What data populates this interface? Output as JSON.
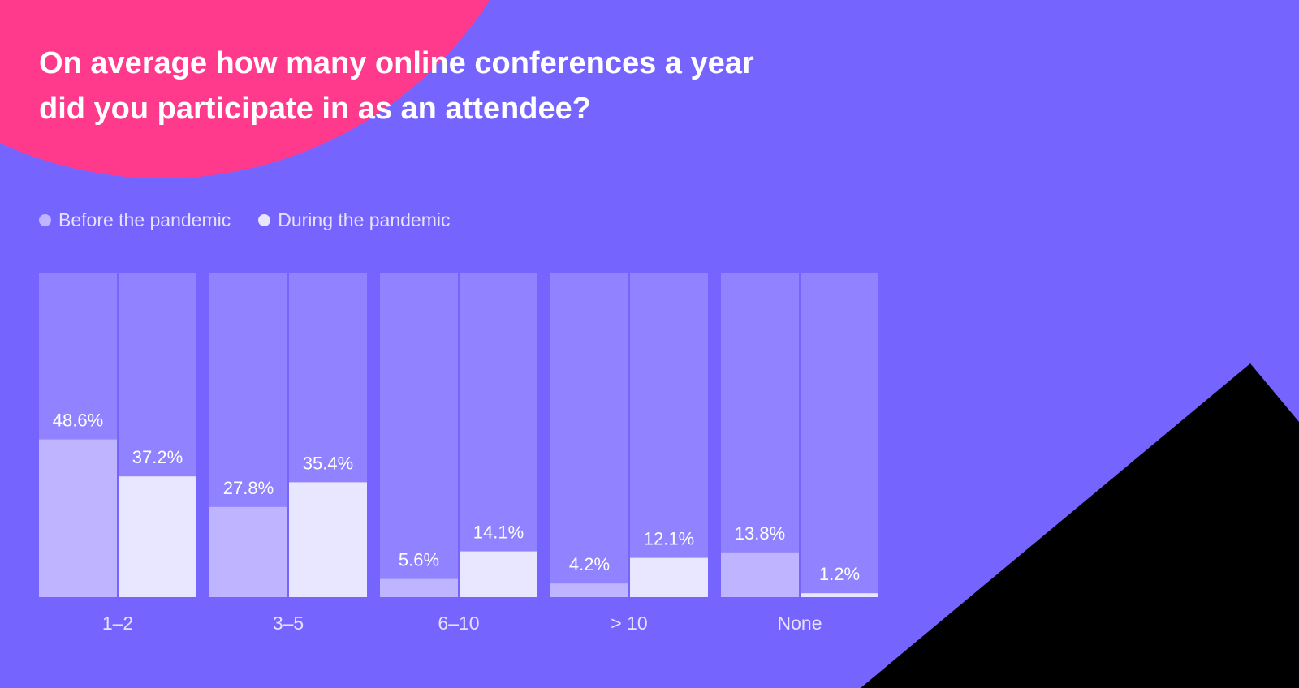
{
  "colors": {
    "background": "#7664FF",
    "blob_pink": "#FF3A8C",
    "corner_black": "#000000",
    "column_bg": "#9182FF",
    "before": "#BEB4FF",
    "during": "#E9E6FF",
    "text_light": "#E6E1FF",
    "text_white": "#FFFFFF"
  },
  "title_lines": [
    "On average how many online conferences a year",
    "did you participate in as an attendee?"
  ],
  "legend": [
    {
      "label": "Before the pandemic",
      "color": "#BEB4FF"
    },
    {
      "label": "During the pandemic",
      "color": "#E9E6FF"
    }
  ],
  "chart_data": {
    "type": "bar",
    "title": "On average how many online conferences a year did you participate in as an attendee?",
    "categories": [
      "1–2",
      "3–5",
      "6–10",
      "> 10",
      "None"
    ],
    "series": [
      {
        "name": "Before the pandemic",
        "values": [
          48.6,
          27.8,
          5.6,
          4.2,
          13.8
        ],
        "labels": [
          "48.6%",
          "27.8%",
          "5.6%",
          "4.2%",
          "13.8%"
        ]
      },
      {
        "name": "During the pandemic",
        "values": [
          37.2,
          35.4,
          14.1,
          12.1,
          1.2
        ],
        "labels": [
          "37.2%",
          "35.4%",
          "14.1%",
          "12.1%",
          "1.2%"
        ]
      }
    ],
    "ylim": [
      0,
      100
    ],
    "legend_position": "top-left",
    "grid": false
  }
}
